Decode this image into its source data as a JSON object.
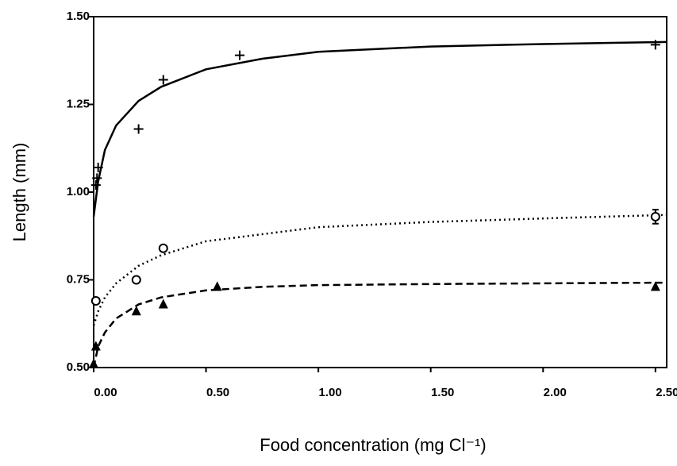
{
  "chart_data": {
    "type": "scatter",
    "x_label": "Food concentration (mg Cl⁻¹)",
    "y_label": "Length (mm)",
    "xlim": [
      0,
      2.55
    ],
    "ylim": [
      0.5,
      1.5
    ],
    "xticks": [
      {
        "value": 0,
        "label": "0.00"
      },
      {
        "value": 0.5,
        "label": "0.50"
      },
      {
        "value": 1,
        "label": "1.00"
      },
      {
        "value": 1.5,
        "label": "1.50"
      },
      {
        "value": 2,
        "label": "2.00"
      },
      {
        "value": 2.5,
        "label": "2.50"
      }
    ],
    "yticks": [
      {
        "value": 0.5,
        "label": "0.50"
      },
      {
        "value": 0.75,
        "label": "0.75"
      },
      {
        "value": 1,
        "label": "1.00"
      },
      {
        "value": 1.25,
        "label": "1.25"
      },
      {
        "value": 1.5,
        "label": "1.50"
      }
    ],
    "color": "#000000",
    "series": [
      {
        "marker": "plus",
        "x": [
          0.01,
          0.015,
          0.02,
          0.2,
          0.31,
          0.65,
          2.5
        ],
        "values": [
          1.02,
          1.04,
          1.07,
          1.18,
          1.32,
          1.39,
          1.42
        ]
      },
      {
        "marker": "circle",
        "x": [
          0.01,
          0.19,
          0.31,
          2.5
        ],
        "values": [
          0.69,
          0.75,
          0.84,
          0.93
        ],
        "errors": [
          null,
          null,
          null,
          0.02
        ]
      },
      {
        "marker": "triangle",
        "x": [
          0,
          0.01,
          0.19,
          0.31,
          0.55,
          2.5
        ],
        "values": [
          0.51,
          0.56,
          0.66,
          0.68,
          0.73,
          0.73
        ]
      }
    ],
    "curves": [
      {
        "style": "solid",
        "x": [
          0,
          0.02,
          0.05,
          0.1,
          0.2,
          0.3,
          0.5,
          0.75,
          1,
          1.5,
          2,
          2.55
        ],
        "values": [
          0.93,
          1.03,
          1.12,
          1.19,
          1.26,
          1.3,
          1.35,
          1.38,
          1.4,
          1.415,
          1.422,
          1.428
        ]
      },
      {
        "style": "dotted",
        "x": [
          0,
          0.02,
          0.05,
          0.1,
          0.2,
          0.3,
          0.5,
          0.75,
          1,
          1.5,
          2,
          2.55
        ],
        "values": [
          0.62,
          0.66,
          0.7,
          0.74,
          0.79,
          0.82,
          0.86,
          0.88,
          0.9,
          0.915,
          0.925,
          0.935
        ]
      },
      {
        "style": "dashed",
        "x": [
          0,
          0.02,
          0.05,
          0.1,
          0.2,
          0.3,
          0.5,
          0.75,
          1,
          1.5,
          2,
          2.55
        ],
        "values": [
          0.5,
          0.56,
          0.6,
          0.64,
          0.68,
          0.7,
          0.72,
          0.73,
          0.735,
          0.738,
          0.74,
          0.742
        ]
      }
    ]
  }
}
